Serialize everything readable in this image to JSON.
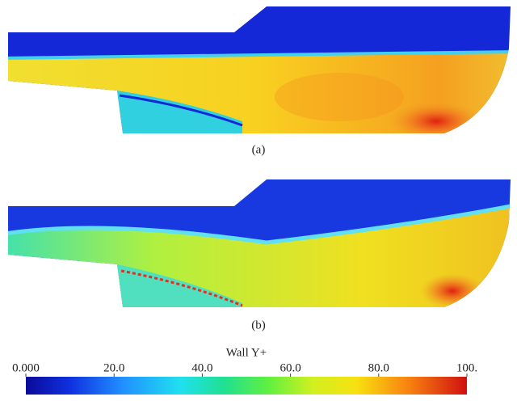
{
  "panels": [
    {
      "caption": "(a)"
    },
    {
      "caption": "(b)"
    }
  ],
  "colorbar": {
    "title": "Wall Y+",
    "range": [
      0,
      100
    ],
    "ticks": [
      {
        "value": 0,
        "label": "0.000"
      },
      {
        "value": 20,
        "label": "20.0"
      },
      {
        "value": 40,
        "label": "40.0"
      },
      {
        "value": 60,
        "label": "60.0"
      },
      {
        "value": 80,
        "label": "80.0"
      },
      {
        "value": 100,
        "label": "100."
      }
    ]
  }
}
